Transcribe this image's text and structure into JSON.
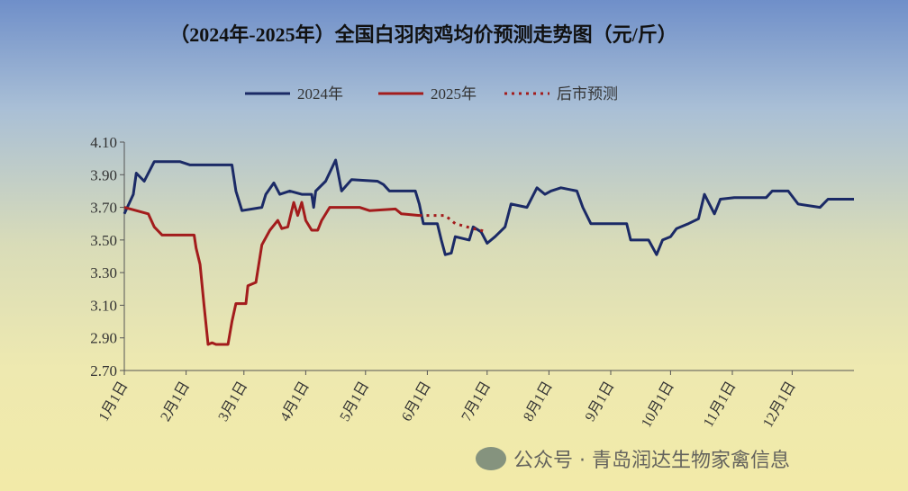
{
  "chart_data": {
    "type": "line",
    "title": "（2024年-2025年）全国白羽肉鸡均价预测走势图（元/斤）",
    "xlim": [
      0,
      366
    ],
    "ylim": [
      2.7,
      4.1
    ],
    "yticks": [
      {
        "value": 2.7,
        "label": "2.70"
      },
      {
        "value": 2.9,
        "label": "2.90"
      },
      {
        "value": 3.1,
        "label": "3.10"
      },
      {
        "value": 3.3,
        "label": "3.30"
      },
      {
        "value": 3.5,
        "label": "3.50"
      },
      {
        "value": 3.7,
        "label": "3.70"
      },
      {
        "value": 3.9,
        "label": "3.90"
      },
      {
        "value": 4.1,
        "label": "4.10"
      }
    ],
    "xticks": [
      {
        "value": 0,
        "label": "1月1日"
      },
      {
        "value": 31,
        "label": "2月1日"
      },
      {
        "value": 60,
        "label": "3月1日"
      },
      {
        "value": 91,
        "label": "4月1日"
      },
      {
        "value": 121,
        "label": "5月1日"
      },
      {
        "value": 152,
        "label": "6月1日"
      },
      {
        "value": 182,
        "label": "7月1日"
      },
      {
        "value": 213,
        "label": "8月1日"
      },
      {
        "value": 244,
        "label": "9月1日"
      },
      {
        "value": 274,
        "label": "10月1日"
      },
      {
        "value": 305,
        "label": "11月1日"
      },
      {
        "value": 335,
        "label": "12月1日"
      }
    ],
    "series": [
      {
        "name": "2024年",
        "color": "#1b2a66",
        "dash": false,
        "x": [
          0,
          4.5,
          6,
          10,
          15,
          28,
          33,
          54,
          56,
          59,
          69,
          71,
          75,
          78,
          83,
          89,
          94,
          95,
          96,
          101,
          106,
          109,
          114,
          127,
          130,
          133,
          146,
          148,
          150,
          157,
          159,
          161,
          164,
          166,
          173,
          175,
          179,
          182,
          186,
          191,
          194,
          202,
          207,
          211,
          214,
          219,
          227,
          230,
          234,
          252,
          254,
          263,
          267,
          270,
          274,
          277,
          283,
          288,
          291,
          296,
          299,
          306,
          322,
          325,
          333,
          338,
          349,
          353,
          366
        ],
        "values": [
          3.66,
          3.78,
          3.91,
          3.86,
          3.98,
          3.98,
          3.96,
          3.96,
          3.8,
          3.68,
          3.7,
          3.78,
          3.85,
          3.78,
          3.8,
          3.78,
          3.78,
          3.7,
          3.8,
          3.86,
          3.99,
          3.8,
          3.87,
          3.86,
          3.84,
          3.8,
          3.8,
          3.72,
          3.6,
          3.6,
          3.5,
          3.41,
          3.42,
          3.52,
          3.5,
          3.58,
          3.55,
          3.48,
          3.52,
          3.58,
          3.72,
          3.7,
          3.82,
          3.78,
          3.8,
          3.82,
          3.8,
          3.7,
          3.6,
          3.6,
          3.5,
          3.5,
          3.41,
          3.5,
          3.52,
          3.57,
          3.6,
          3.63,
          3.78,
          3.66,
          3.75,
          3.76,
          3.76,
          3.8,
          3.8,
          3.72,
          3.7,
          3.75,
          3.75
        ]
      },
      {
        "name": "2025年",
        "color": "#a31c1c",
        "dash": false,
        "x": [
          0,
          12,
          15,
          19,
          35,
          36,
          38,
          40,
          42,
          44,
          46,
          52,
          54,
          56,
          61,
          62,
          66,
          69,
          73,
          77,
          79,
          82,
          85,
          87,
          89,
          91,
          94,
          97,
          99,
          103,
          118,
          123,
          136,
          139,
          148
        ],
        "values": [
          3.7,
          3.66,
          3.58,
          3.53,
          3.53,
          3.45,
          3.35,
          3.1,
          2.86,
          2.87,
          2.86,
          2.86,
          3.0,
          3.11,
          3.11,
          3.22,
          3.24,
          3.47,
          3.56,
          3.62,
          3.57,
          3.58,
          3.73,
          3.65,
          3.73,
          3.62,
          3.56,
          3.56,
          3.62,
          3.7,
          3.7,
          3.68,
          3.69,
          3.66,
          3.65
        ]
      },
      {
        "name": "后市预测",
        "color": "#a31c1c",
        "dash": true,
        "x": [
          148,
          161,
          166,
          175,
          182
        ],
        "values": [
          3.65,
          3.65,
          3.6,
          3.57,
          3.55
        ]
      }
    ],
    "watermark": "公众号 · 青岛润达生物家禽信息"
  }
}
